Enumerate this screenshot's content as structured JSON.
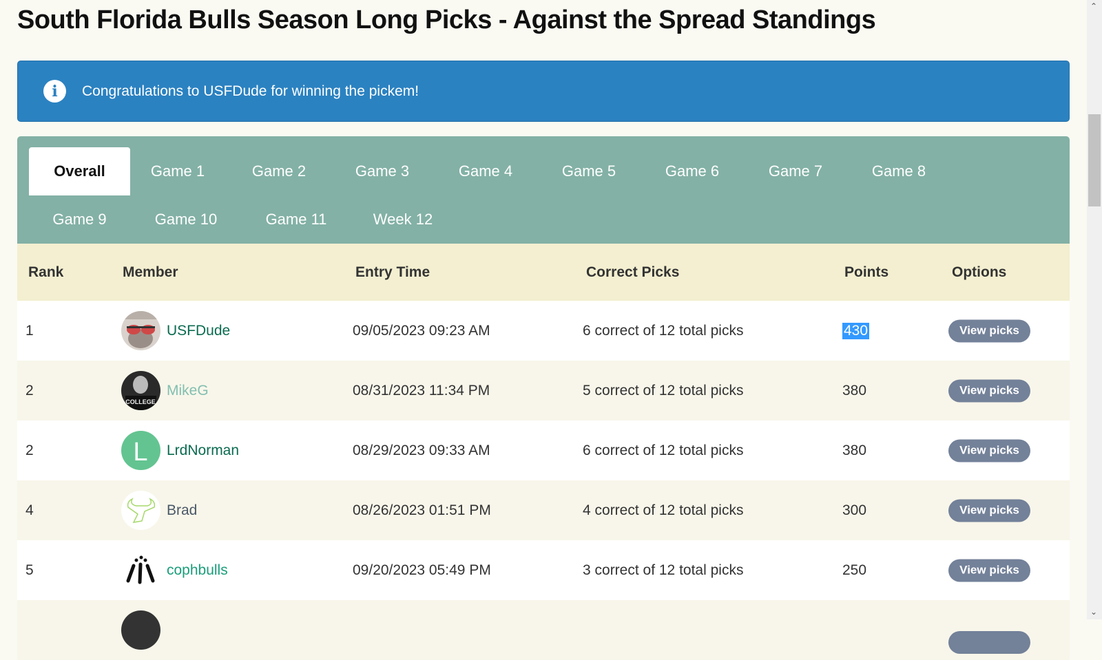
{
  "title": "South Florida Bulls Season Long Picks - Against the Spread Standings",
  "alert": {
    "icon": "info-icon",
    "message": "Congratulations to USFDude for winning the pickem!"
  },
  "tabs": [
    "Overall",
    "Game 1",
    "Game 2",
    "Game 3",
    "Game 4",
    "Game 5",
    "Game 6",
    "Game 7",
    "Game 8",
    "Game 9",
    "Game 10",
    "Game 11",
    "Week 12"
  ],
  "active_tab": "Overall",
  "table": {
    "headers": [
      "Rank",
      "Member",
      "Entry Time",
      "Correct Picks",
      "Points",
      "Options"
    ],
    "rows": [
      {
        "rank": "1",
        "member": "USFDude",
        "entry": "09/05/2023 09:23 AM",
        "correct": "6 correct of 12 total picks",
        "points": "430",
        "button": "View picks",
        "color": "#0b6b50"
      },
      {
        "rank": "2",
        "member": "MikeG",
        "entry": "08/31/2023 11:34 PM",
        "correct": "5 correct of 12 total picks",
        "points": "380",
        "button": "View picks",
        "color": "#82bfb0"
      },
      {
        "rank": "2",
        "member": "LrdNorman",
        "entry": "08/29/2023 09:33 AM",
        "correct": "6 correct of 12 total picks",
        "points": "380",
        "button": "View picks",
        "color": "#0b6b50",
        "avatar_letter": "L"
      },
      {
        "rank": "4",
        "member": "Brad",
        "entry": "08/26/2023 01:51 PM",
        "correct": "4 correct of 12 total picks",
        "points": "300",
        "button": "View picks",
        "color": "#4a5868"
      },
      {
        "rank": "5",
        "member": "cophbulls",
        "entry": "09/20/2023 05:49 PM",
        "correct": "3 correct of 12 total picks",
        "points": "250",
        "button": "View picks",
        "color": "#1a9e7a"
      }
    ]
  },
  "colors": {
    "alert": "#2b82c1",
    "tabs": "#83b1a5",
    "header": "#f3efd0",
    "button": "#738199"
  }
}
